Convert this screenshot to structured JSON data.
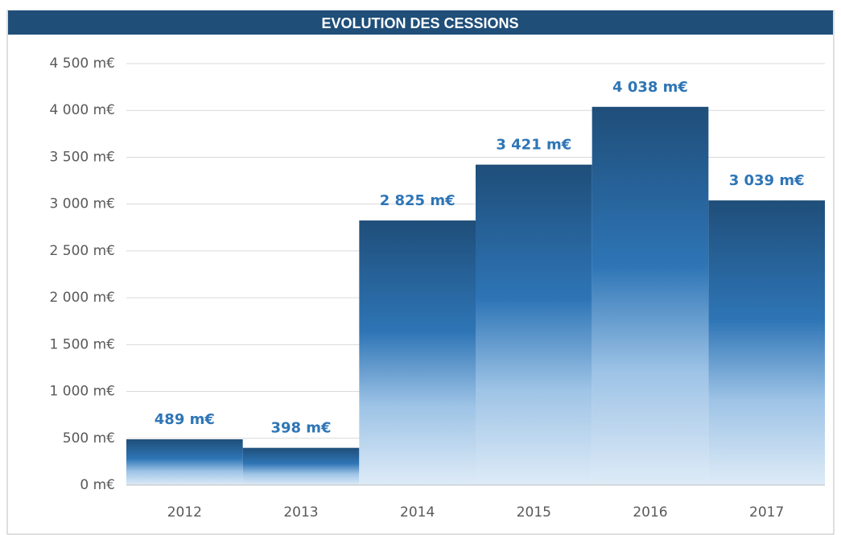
{
  "chart_data": {
    "type": "bar",
    "title": "EVOLUTION DES CESSIONS",
    "categories": [
      "2012",
      "2013",
      "2014",
      "2015",
      "2016",
      "2017"
    ],
    "values": [
      489,
      398,
      2825,
      3421,
      4038,
      3039
    ],
    "value_labels": [
      "489 m€",
      "398 m€",
      "2 825 m€",
      "3 421 m€",
      "4 038 m€",
      "3 039 m€"
    ],
    "color": "#2e75b6",
    "ylim": [
      0,
      4500
    ],
    "yticks": [
      {
        "value": 0,
        "label": "0 m€"
      },
      {
        "value": 500,
        "label": "500 m€"
      },
      {
        "value": 1000,
        "label": "1 000 m€"
      },
      {
        "value": 1500,
        "label": "1 500 m€"
      },
      {
        "value": 2000,
        "label": "2 000 m€"
      },
      {
        "value": 2500,
        "label": "2 500 m€"
      },
      {
        "value": 3000,
        "label": "3 000 m€"
      },
      {
        "value": 3500,
        "label": "3 500 m€"
      },
      {
        "value": 4000,
        "label": "4 000 m€"
      },
      {
        "value": 4500,
        "label": "4 500 m€"
      }
    ],
    "grid": true
  }
}
